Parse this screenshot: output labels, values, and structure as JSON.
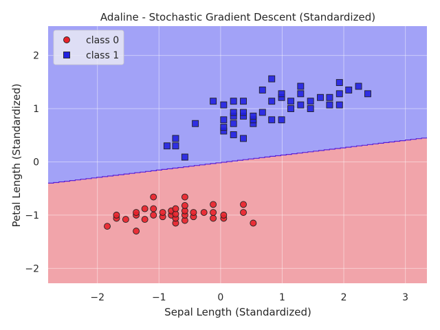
{
  "chart_data": {
    "type": "scatter",
    "title": "Adaline - Stochastic Gradient Descent (Standardized)",
    "xlabel": "Sepal Length (Standardized)",
    "ylabel": "Petal Length (Standardized)",
    "xlim": [
      -2.8,
      3.35
    ],
    "ylim": [
      -2.28,
      2.55
    ],
    "xticks": [
      -2,
      -1,
      0,
      1,
      2,
      3
    ],
    "yticks": [
      -2,
      -1,
      0,
      1,
      2
    ],
    "xtick_labels": [
      "−2",
      "−1",
      "0",
      "1",
      "2",
      "3"
    ],
    "ytick_labels": [
      "−2",
      "−1",
      "0",
      "1",
      "2"
    ],
    "grid": true,
    "legend_position": "upper-left",
    "decision_boundary": {
      "x": [
        -2.8,
        3.35
      ],
      "y": [
        -0.4,
        0.46
      ]
    },
    "regions": {
      "upper": "class 1",
      "lower": "class 0"
    },
    "colors": {
      "class0_fill": "#e8222a",
      "class1_fill": "#2222e0",
      "region0": "#f1a4aa",
      "region1": "#a2a2f7",
      "boundary": "#5a1fd6",
      "grid": "#ffffff"
    },
    "series": [
      {
        "name": "class 0",
        "marker": "circle",
        "points": [
          [
            -1.84,
            -1.21
          ],
          [
            -1.69,
            -1.06
          ],
          [
            -1.69,
            -1.0
          ],
          [
            -1.54,
            -1.08
          ],
          [
            -1.37,
            -1.3
          ],
          [
            -1.37,
            -1.0
          ],
          [
            -1.37,
            -0.95
          ],
          [
            -1.23,
            -1.08
          ],
          [
            -1.23,
            -0.88
          ],
          [
            -1.09,
            -1.0
          ],
          [
            -1.09,
            -0.88
          ],
          [
            -1.09,
            -0.66
          ],
          [
            -0.94,
            -1.03
          ],
          [
            -0.94,
            -0.95
          ],
          [
            -0.8,
            -1.0
          ],
          [
            -0.8,
            -0.92
          ],
          [
            -0.73,
            -1.15
          ],
          [
            -0.73,
            -1.06
          ],
          [
            -0.73,
            -0.98
          ],
          [
            -0.73,
            -0.88
          ],
          [
            -0.58,
            -1.1
          ],
          [
            -0.58,
            -1.0
          ],
          [
            -0.58,
            -0.92
          ],
          [
            -0.58,
            -0.82
          ],
          [
            -0.58,
            -0.66
          ],
          [
            -0.44,
            -1.03
          ],
          [
            -0.44,
            -0.95
          ],
          [
            -0.27,
            -0.95
          ],
          [
            -0.12,
            -1.06
          ],
          [
            -0.12,
            -0.95
          ],
          [
            -0.12,
            -0.8
          ],
          [
            0.05,
            -1.06
          ],
          [
            0.05,
            -1.0
          ],
          [
            0.37,
            -0.95
          ],
          [
            0.37,
            -0.8
          ],
          [
            0.53,
            -1.15
          ]
        ]
      },
      {
        "name": "class 1",
        "marker": "square",
        "points": [
          [
            -0.87,
            0.3
          ],
          [
            -0.73,
            0.3
          ],
          [
            -0.73,
            0.44
          ],
          [
            -0.58,
            0.09
          ],
          [
            -0.41,
            0.72
          ],
          [
            -0.12,
            1.14
          ],
          [
            0.05,
            0.58
          ],
          [
            0.05,
            0.65
          ],
          [
            0.05,
            0.79
          ],
          [
            0.05,
            1.07
          ],
          [
            0.21,
            0.51
          ],
          [
            0.21,
            0.72
          ],
          [
            0.21,
            0.86
          ],
          [
            0.21,
            0.93
          ],
          [
            0.21,
            1.14
          ],
          [
            0.37,
            0.44
          ],
          [
            0.37,
            0.86
          ],
          [
            0.37,
            0.93
          ],
          [
            0.37,
            1.14
          ],
          [
            0.53,
            0.72
          ],
          [
            0.53,
            0.79
          ],
          [
            0.53,
            0.86
          ],
          [
            0.68,
            0.93
          ],
          [
            0.68,
            1.35
          ],
          [
            0.83,
            0.79
          ],
          [
            0.83,
            1.14
          ],
          [
            0.83,
            1.56
          ],
          [
            0.99,
            0.79
          ],
          [
            0.99,
            1.21
          ],
          [
            0.99,
            1.28
          ],
          [
            1.14,
            1.0
          ],
          [
            1.14,
            1.14
          ],
          [
            1.3,
            1.07
          ],
          [
            1.3,
            1.28
          ],
          [
            1.3,
            1.42
          ],
          [
            1.46,
            1.0
          ],
          [
            1.46,
            1.14
          ],
          [
            1.62,
            1.21
          ],
          [
            1.77,
            1.07
          ],
          [
            1.77,
            1.21
          ],
          [
            1.93,
            1.07
          ],
          [
            1.93,
            1.28
          ],
          [
            1.93,
            1.49
          ],
          [
            2.08,
            1.35
          ],
          [
            2.24,
            1.42
          ],
          [
            2.39,
            1.28
          ]
        ]
      }
    ]
  }
}
